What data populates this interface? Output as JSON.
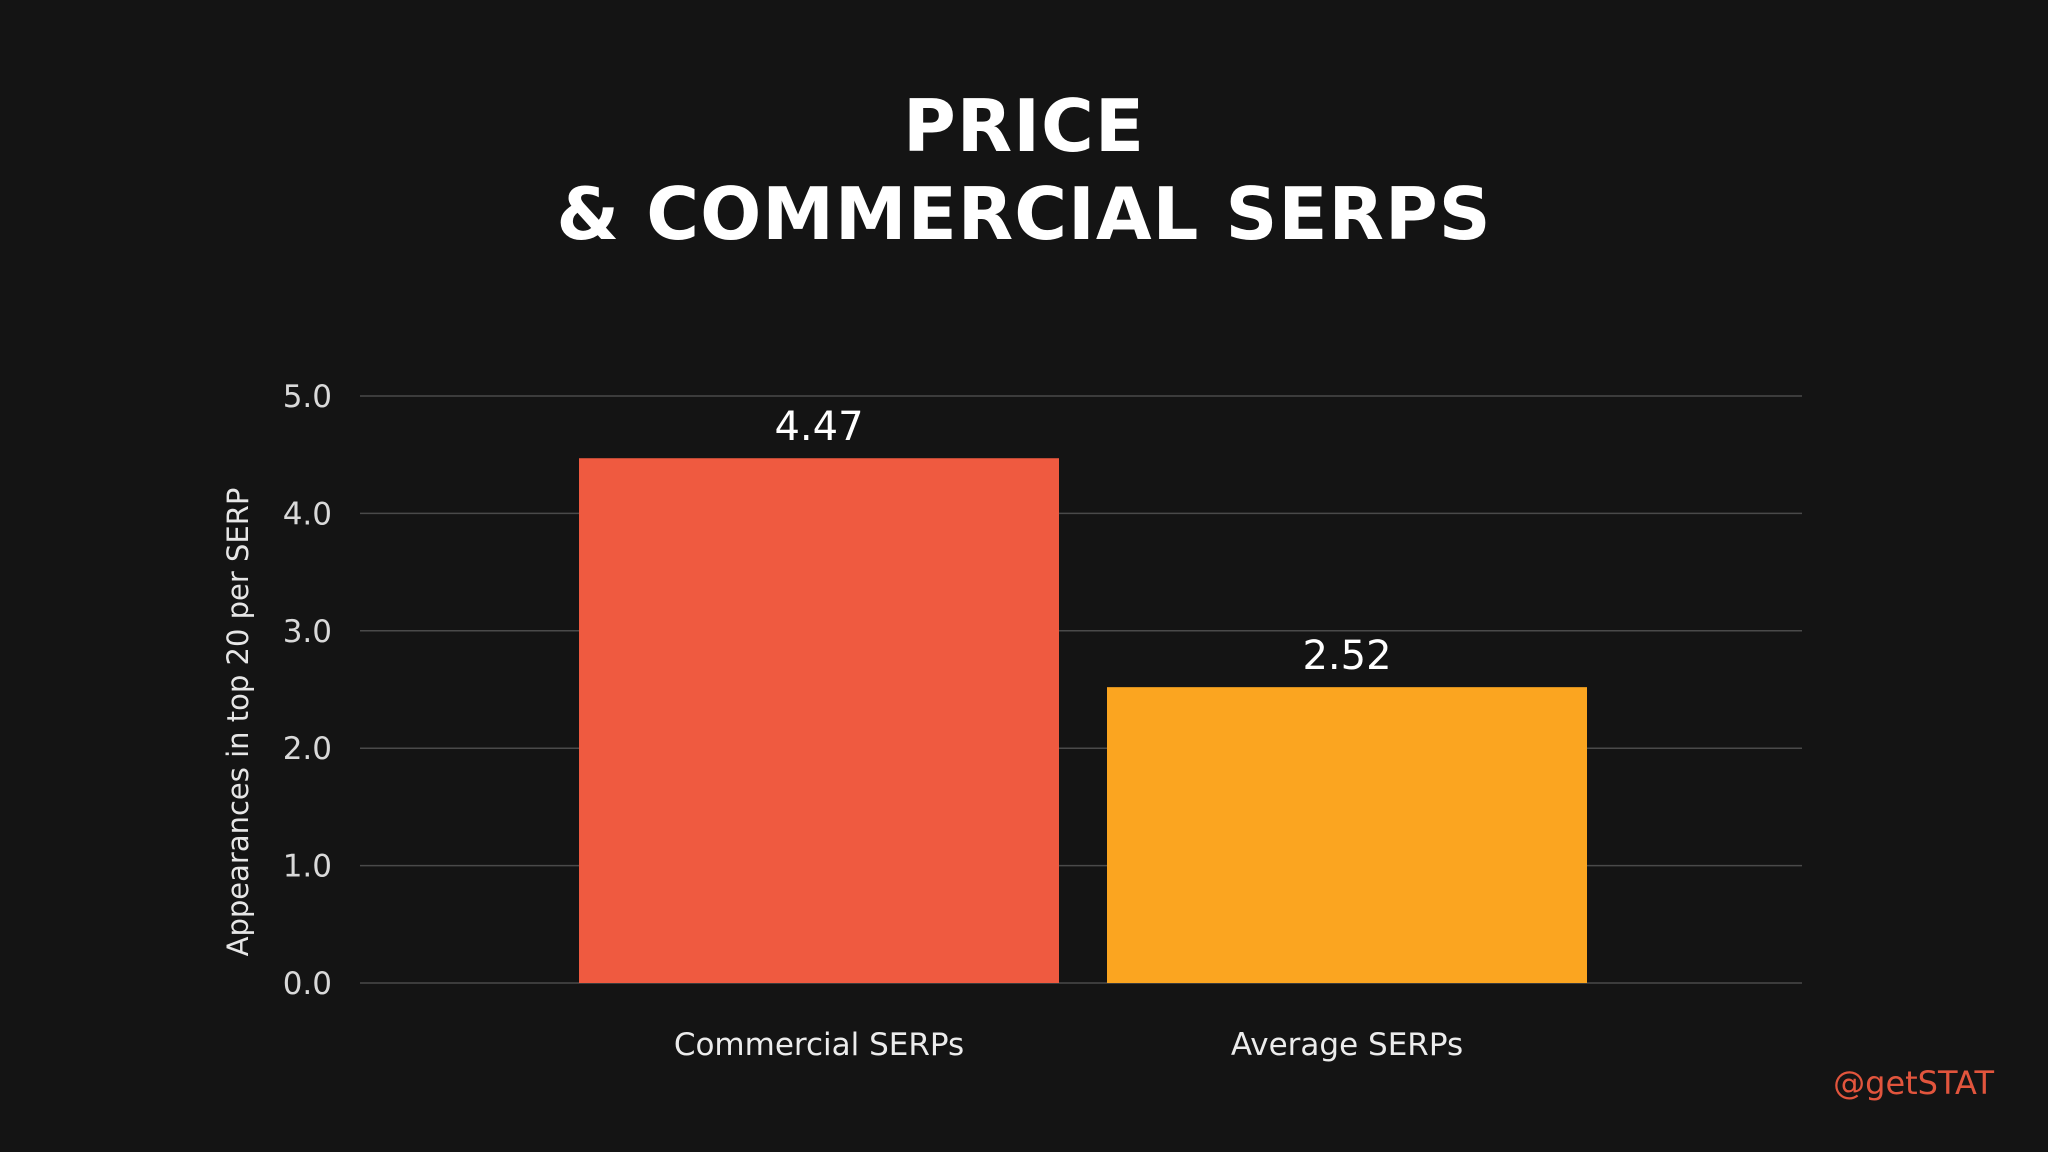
{
  "title": {
    "line1": "PRICE",
    "line2": "& COMMERCIAL SERPS"
  },
  "credit": "@getSTAT",
  "colors": {
    "background": "#141414",
    "bar_commercial": "#ef5a40",
    "bar_average": "#fba520",
    "credit": "#e2553d"
  },
  "chart_data": {
    "type": "bar",
    "categories": [
      "Commercial SERPs",
      "Average SERPs"
    ],
    "values": [
      4.47,
      2.52
    ],
    "data_labels": [
      "4.47",
      "2.52"
    ],
    "bar_colors": [
      "#ef5a40",
      "#fba520"
    ],
    "title": "PRICE & COMMERCIAL SERPS",
    "xlabel": "",
    "ylabel": "Appearances in top 20 per SERP",
    "ylim": [
      0,
      5
    ],
    "yticks": [
      "0.0",
      "1.0",
      "2.0",
      "3.0",
      "4.0",
      "5.0"
    ],
    "grid": true,
    "legend": "none"
  }
}
